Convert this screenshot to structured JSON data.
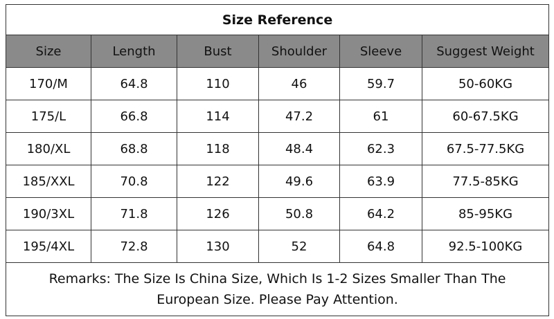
{
  "table": {
    "title": "Size Reference",
    "header": [
      "Size",
      "Length",
      "Bust",
      "Shoulder",
      "Sleeve",
      "Suggest Weight"
    ],
    "rows": [
      [
        "170/M",
        "64.8",
        "110",
        "46",
        "59.7",
        "50-60KG"
      ],
      [
        "175/L",
        "66.8",
        "114",
        "47.2",
        "61",
        "60-67.5KG"
      ],
      [
        "180/XL",
        "68.8",
        "118",
        "48.4",
        "62.3",
        "67.5-77.5KG"
      ],
      [
        "185/XXL",
        "70.8",
        "122",
        "49.6",
        "63.9",
        "77.5-85KG"
      ],
      [
        "190/3XL",
        "71.8",
        "126",
        "50.8",
        "64.2",
        "85-95KG"
      ],
      [
        "195/4XL",
        "72.8",
        "130",
        "52",
        "64.8",
        "92.5-100KG"
      ]
    ],
    "remarks": "Remarks: The Size Is China Size, Which Is 1-2 Sizes Smaller Than The European Size. Please Pay Attention."
  }
}
